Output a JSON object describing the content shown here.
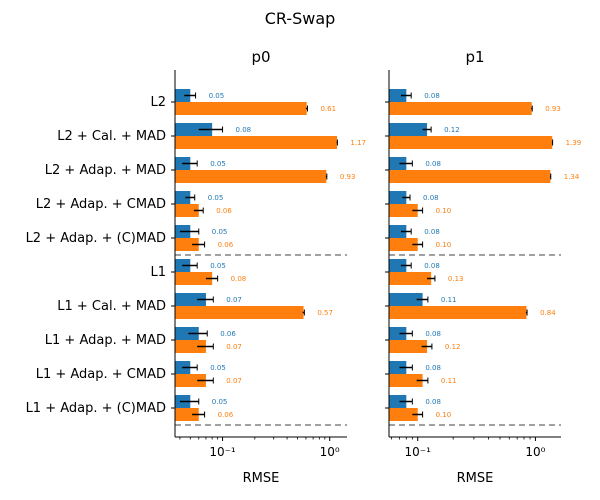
{
  "chart_data": {
    "type": "bar",
    "orientation": "horizontal",
    "title": "CR-Swap",
    "xscale": "log",
    "grid": false,
    "categories": [
      "L2",
      "L2 + Cal. + MAD",
      "L2 + Adap. + MAD",
      "L2 + Adap. + CMAD",
      "L2 + Adap. + (C)MAD",
      "L1",
      "L1 + Cal. + MAD",
      "L1 + Adap. + MAD",
      "L1 + Adap. + CMAD",
      "L1 + Adap. + (C)MAD"
    ],
    "separators_after_index": [
      4,
      9
    ],
    "colors": [
      "#1f77b4",
      "#ff7f0e"
    ],
    "panels": [
      {
        "title": "p0",
        "xlabel": "RMSE",
        "xlim": [
          0.036,
          1.45
        ],
        "xticks": [
          {
            "value": 0.1,
            "label": "10⁻¹"
          },
          {
            "value": 1,
            "label": "10⁰"
          }
        ],
        "series": [
          {
            "values": [
              0.05,
              0.08,
              0.05,
              0.05,
              0.05,
              0.05,
              0.07,
              0.06,
              0.05,
              0.05
            ],
            "errors": [
              0.006,
              0.02,
              0.008,
              0.005,
              0.01,
              0.008,
              0.012,
              0.012,
              0.008,
              0.01
            ],
            "labels": [
              "0.05",
              "0.08",
              "0.05",
              "0.05",
              "0.05",
              "0.05",
              "0.07",
              "0.06",
              "0.05",
              "0.05"
            ]
          },
          {
            "values": [
              0.61,
              1.17,
              0.93,
              0.06,
              0.06,
              0.08,
              0.57,
              0.07,
              0.07,
              0.06
            ],
            "errors": [
              0.01,
              0.01,
              0.01,
              0.006,
              0.008,
              0.01,
              0.01,
              0.012,
              0.012,
              0.008
            ],
            "labels": [
              "0.61",
              "1.17",
              "0.93",
              "0.06",
              "0.06",
              "0.08",
              "0.57",
              "0.07",
              "0.07",
              "0.06"
            ]
          }
        ]
      },
      {
        "title": "p1",
        "xlabel": "RMSE",
        "xlim": [
          0.057,
          1.65
        ],
        "xticks": [
          {
            "value": 0.1,
            "label": "10⁻¹"
          },
          {
            "value": 1,
            "label": "10⁰"
          }
        ],
        "series": [
          {
            "values": [
              0.08,
              0.12,
              0.08,
              0.08,
              0.08,
              0.08,
              0.11,
              0.08,
              0.08,
              0.08
            ],
            "errors": [
              0.008,
              0.01,
              0.01,
              0.006,
              0.008,
              0.008,
              0.012,
              0.01,
              0.01,
              0.01
            ],
            "labels": [
              "0.08",
              "0.12",
              "0.08",
              "0.08",
              "0.08",
              "0.08",
              "0.11",
              "0.08",
              "0.08",
              "0.08"
            ]
          },
          {
            "values": [
              0.93,
              1.39,
              1.34,
              0.1,
              0.1,
              0.13,
              0.84,
              0.12,
              0.11,
              0.1
            ],
            "errors": [
              0.01,
              0.01,
              0.01,
              0.01,
              0.01,
              0.01,
              0.01,
              0.012,
              0.012,
              0.01
            ],
            "labels": [
              "0.93",
              "1.39",
              "1.34",
              "0.10",
              "0.10",
              "0.13",
              "0.84",
              "0.12",
              "0.11",
              "0.10"
            ]
          }
        ]
      }
    ]
  }
}
